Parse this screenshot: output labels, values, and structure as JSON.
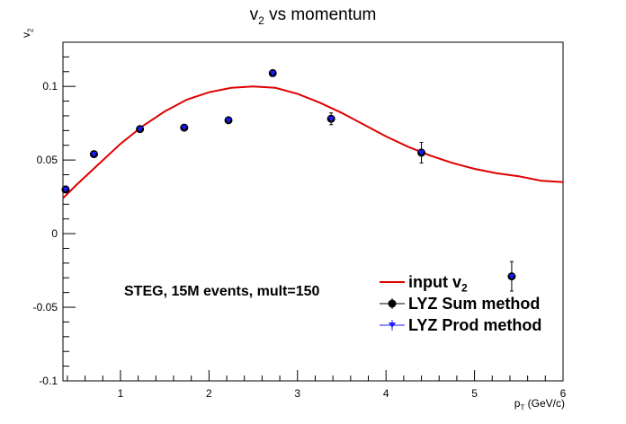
{
  "chart_data": {
    "type": "scatter",
    "title_main": "v",
    "title_sub": "2",
    "title_tail": " vs momentum",
    "ylabel_main": "v",
    "ylabel_sub": "2",
    "xlabel_main": "p",
    "xlabel_sub": "T",
    "xlabel_tail": " (GeV/c)",
    "xlim": [
      0.35,
      6.0
    ],
    "ylim": [
      -0.1,
      0.13
    ],
    "x_ticks": [
      1,
      2,
      3,
      4,
      5,
      6
    ],
    "y_ticks": [
      -0.1,
      -0.05,
      0,
      0.05,
      0.1
    ],
    "y_tick_labels": [
      "-0.1",
      "-0.05",
      "0",
      "0.05",
      "0.1"
    ],
    "annotation": "STEG, 15M events, mult=150",
    "legend_position": "bottom-right",
    "legend": [
      {
        "key": "input",
        "main": "input v",
        "sub": "2"
      },
      {
        "key": "sum",
        "main": "LYZ Sum method",
        "sub": ""
      },
      {
        "key": "prod",
        "main": "LYZ Prod method",
        "sub": ""
      }
    ],
    "series": [
      {
        "name": "input v2",
        "kind": "line",
        "color": "#e00000",
        "x": [
          0.35,
          0.5,
          0.75,
          1.0,
          1.25,
          1.5,
          1.75,
          2.0,
          2.25,
          2.5,
          2.75,
          3.0,
          3.25,
          3.5,
          3.75,
          4.0,
          4.25,
          4.5,
          4.75,
          5.0,
          5.25,
          5.5,
          5.75,
          6.0
        ],
        "y": [
          0.024,
          0.033,
          0.047,
          0.061,
          0.073,
          0.083,
          0.091,
          0.096,
          0.099,
          0.1,
          0.099,
          0.095,
          0.089,
          0.082,
          0.074,
          0.066,
          0.059,
          0.053,
          0.048,
          0.044,
          0.041,
          0.039,
          0.036,
          0.035
        ]
      },
      {
        "name": "LYZ Sum method",
        "kind": "points",
        "color": "#000000",
        "marker": "circle",
        "x": [
          0.38,
          0.7,
          1.22,
          1.72,
          2.22,
          2.72,
          3.38,
          4.4,
          5.42
        ],
        "y": [
          0.03,
          0.054,
          0.071,
          0.072,
          0.077,
          0.109,
          0.078,
          0.055,
          -0.029
        ],
        "err": [
          0.002,
          0.002,
          0.002,
          0.002,
          0.002,
          0.002,
          0.004,
          0.007,
          0.01
        ]
      },
      {
        "name": "LYZ Prod method",
        "kind": "points",
        "color": "#1a1aff",
        "marker": "triangle-down",
        "x": [
          0.38,
          0.7,
          1.22,
          1.72,
          2.22,
          2.72,
          3.38,
          4.4,
          5.42
        ],
        "y": [
          0.03,
          0.054,
          0.071,
          0.072,
          0.077,
          0.109,
          0.078,
          0.055,
          -0.029
        ],
        "err": [
          0.002,
          0.002,
          0.002,
          0.002,
          0.002,
          0.002,
          0.004,
          0.007,
          0.01
        ]
      }
    ]
  }
}
